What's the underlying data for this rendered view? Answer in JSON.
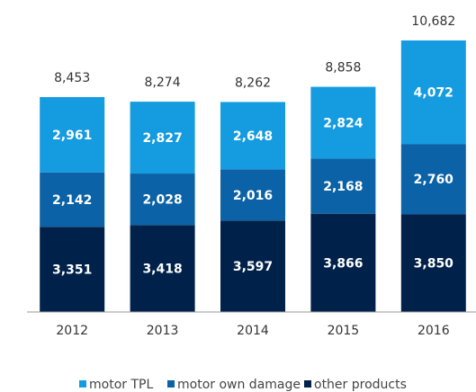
{
  "chart_data": {
    "type": "stacked_bar",
    "categories": [
      "2012",
      "2013",
      "2014",
      "2015",
      "2016"
    ],
    "series": [
      {
        "name": "other products",
        "color": "#00224a",
        "values": [
          3351,
          3418,
          3597,
          3866,
          3850
        ],
        "value_labels": [
          "3,351",
          "3,418",
          "3,597",
          "3,866",
          "3,850"
        ]
      },
      {
        "name": "motor own damage",
        "color": "#0b62a6",
        "values": [
          2142,
          2028,
          2016,
          2168,
          2760
        ],
        "value_labels": [
          "2,142",
          "2,028",
          "2,016",
          "2,168",
          "2,760"
        ]
      },
      {
        "name": "motor TPL",
        "color": "#159be0",
        "values": [
          2961,
          2827,
          2648,
          2824,
          4072
        ],
        "value_labels": [
          "2,961",
          "2,827",
          "2,648",
          "2,824",
          "4,072"
        ]
      }
    ],
    "totals": [
      8453,
      8274,
      8262,
      8858,
      10682
    ],
    "total_labels": [
      "8,453",
      "8,274",
      "8,262",
      "8,858",
      "10,682"
    ],
    "legend_order": [
      2,
      1,
      0
    ]
  }
}
